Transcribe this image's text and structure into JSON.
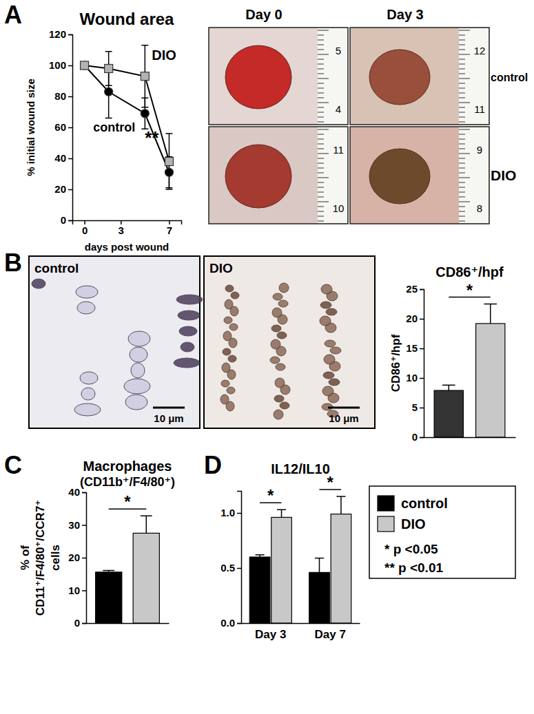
{
  "figure": {
    "panels": [
      "A",
      "B",
      "C",
      "D"
    ],
    "wound_photos": {
      "columns": [
        "Day 0",
        "Day 3"
      ],
      "rows": [
        "control",
        "DIO"
      ],
      "ruler_labels": [
        [
          "5",
          "4"
        ],
        [
          "12",
          "11"
        ],
        [
          "11",
          "10"
        ],
        [
          "9",
          "8"
        ]
      ]
    },
    "micrographs": {
      "labels": [
        "control",
        "DIO"
      ],
      "scale_bar": "10 μm"
    }
  },
  "chart_data": [
    {
      "type": "line",
      "title": "Wound area",
      "x_label": "days post wound",
      "y_label": "% initial wound size",
      "x": [
        0,
        2,
        5,
        7
      ],
      "xlim": [
        -1,
        8
      ],
      "xticks": [
        0,
        3,
        7
      ],
      "ylim": [
        0,
        120
      ],
      "yticks": [
        0,
        20,
        40,
        60,
        80,
        100,
        120
      ],
      "series": [
        {
          "name": "control",
          "color": "#000000",
          "marker": "circle",
          "values": [
            100,
            83,
            69,
            31
          ],
          "errors": [
            0,
            17,
            10,
            10
          ]
        },
        {
          "name": "DIO",
          "color": "#b3b3b3",
          "marker": "square",
          "values": [
            100,
            98,
            93,
            38
          ],
          "errors": [
            0,
            11,
            20,
            18
          ]
        }
      ],
      "annotations": [
        {
          "text": "**",
          "x": 5
        }
      ]
    },
    {
      "type": "bar",
      "title": "CD86⁺/hpf",
      "y_label": "CD86⁺/hpf",
      "categories": [
        null,
        null
      ],
      "values": [
        7.9,
        19.2
      ],
      "errors": [
        0.9,
        3.3
      ],
      "colors": [
        "#333333",
        "#c8c8c8"
      ],
      "ylim": [
        0,
        25
      ],
      "yticks": [
        0,
        5,
        10,
        15,
        20,
        25
      ],
      "significance": "*"
    },
    {
      "type": "bar",
      "title": "Macrophages",
      "subtitle": "(CD11b⁺/F4/80⁺)",
      "y_label": [
        "% of",
        "CD11⁺/F4/80⁺/CCR7⁺",
        "cells"
      ],
      "categories": [
        null,
        null
      ],
      "values": [
        15.6,
        27.5
      ],
      "errors": [
        0.5,
        5.3
      ],
      "colors": [
        "#000000",
        "#c8c8c8"
      ],
      "ylim": [
        0,
        40
      ],
      "yticks": [
        0,
        10,
        20,
        30,
        40
      ],
      "significance": "*"
    },
    {
      "type": "bar",
      "title": "IL12/IL10",
      "categories": [
        "Day 3",
        "Day 7"
      ],
      "series": [
        {
          "name": "control",
          "color": "#000000",
          "values": [
            0.6,
            0.46
          ],
          "errors": [
            0.02,
            0.13
          ]
        },
        {
          "name": "DIO",
          "color": "#c8c8c8",
          "values": [
            0.96,
            0.99
          ],
          "errors": [
            0.07,
            0.16
          ]
        }
      ],
      "ylim": [
        0,
        1.2
      ],
      "yticks": [
        {
          "value": 0,
          "label": "0.0"
        },
        {
          "value": 0.5,
          "label": "0.5"
        },
        {
          "value": 1,
          "label": "1.0"
        }
      ],
      "legend": "right",
      "significance": [
        "*",
        "*"
      ],
      "notes": [
        "* p <0.05",
        "** p <0.01"
      ]
    }
  ]
}
